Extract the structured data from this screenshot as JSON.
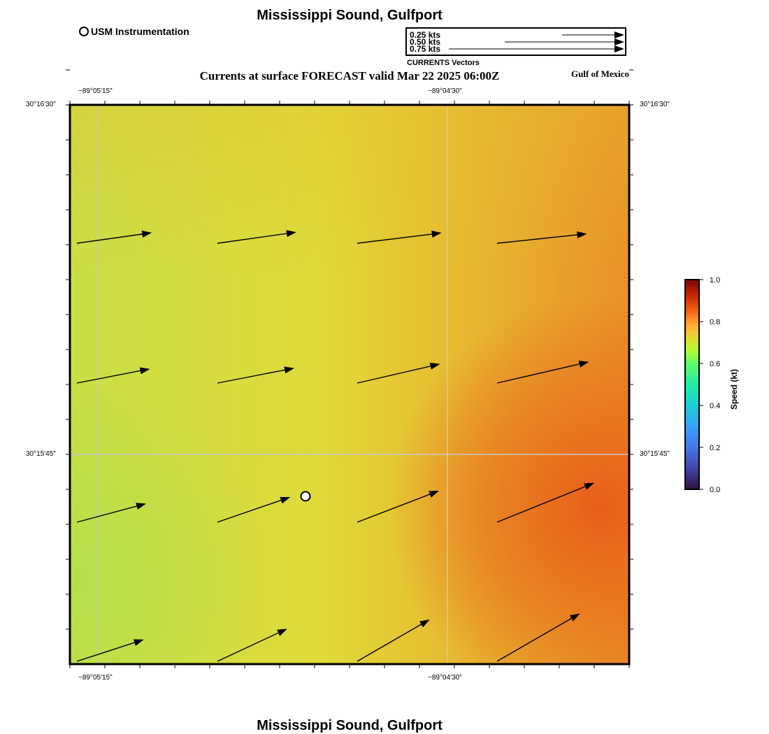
{
  "title": "Mississippi Sound, Gulfport",
  "footer_title": "Mississippi Sound, Gulfport",
  "subtitle": "Currents at surface FORECAST valid Mar 22 2025 06:00Z",
  "region_label": "Gulf of Mexico",
  "station_legend": "USM Instrumentation",
  "vector_legend": {
    "caption": "CURRENTS Vectors",
    "items": [
      "0.25 kts",
      "0.50 kts",
      "0.75 kts"
    ]
  },
  "axes": {
    "top_lon": [
      "−89°05'15\"",
      "−89°04'30\""
    ],
    "bottom_lon": [
      "−89°05'15\"",
      "−89°04'30\""
    ],
    "left_lat": [
      "30°16'30\"",
      "30°15'45\""
    ],
    "right_lat": [
      "30°16'30\"",
      "30°15'45\""
    ]
  },
  "colorbar": {
    "title": "Speed (kt)",
    "ticks": [
      "1.0",
      "0.8",
      "0.6",
      "0.4",
      "0.2",
      "0.0"
    ]
  },
  "colors": {
    "low": "#b8e048",
    "mid": "#e3dd38",
    "high": "#e8c030",
    "peak": "#e8651a",
    "grid": "#c8c8c8"
  },
  "chart_data": {
    "type": "heatmap",
    "variable": "Current speed at surface",
    "units": "kt",
    "colorbar_range": [
      0.0,
      1.0
    ],
    "lon_range": [
      "-89°05'19\"",
      "-89°04'04\""
    ],
    "lat_range": [
      "30°15'15\"",
      "30°16'30\""
    ],
    "vectors": [
      {
        "row": 1,
        "col": 1,
        "speed_kt": 0.57,
        "dir_deg": 82
      },
      {
        "row": 1,
        "col": 2,
        "speed_kt": 0.6,
        "dir_deg": 82
      },
      {
        "row": 1,
        "col": 3,
        "speed_kt": 0.64,
        "dir_deg": 83
      },
      {
        "row": 1,
        "col": 4,
        "speed_kt": 0.68,
        "dir_deg": 84
      },
      {
        "row": 2,
        "col": 1,
        "speed_kt": 0.56,
        "dir_deg": 79
      },
      {
        "row": 2,
        "col": 2,
        "speed_kt": 0.59,
        "dir_deg": 79
      },
      {
        "row": 2,
        "col": 3,
        "speed_kt": 0.64,
        "dir_deg": 77
      },
      {
        "row": 2,
        "col": 4,
        "speed_kt": 0.71,
        "dir_deg": 77
      },
      {
        "row": 3,
        "col": 1,
        "speed_kt": 0.54,
        "dir_deg": 75
      },
      {
        "row": 3,
        "col": 2,
        "speed_kt": 0.58,
        "dir_deg": 71
      },
      {
        "row": 3,
        "col": 3,
        "speed_kt": 0.66,
        "dir_deg": 69
      },
      {
        "row": 3,
        "col": 4,
        "speed_kt": 0.79,
        "dir_deg": 68
      },
      {
        "row": 4,
        "col": 1,
        "speed_kt": 0.53,
        "dir_deg": 72
      },
      {
        "row": 4,
        "col": 2,
        "speed_kt": 0.58,
        "dir_deg": 65
      },
      {
        "row": 4,
        "col": 3,
        "speed_kt": 0.63,
        "dir_deg": 60
      },
      {
        "row": 4,
        "col": 4,
        "speed_kt": 0.72,
        "dir_deg": 60
      }
    ]
  }
}
